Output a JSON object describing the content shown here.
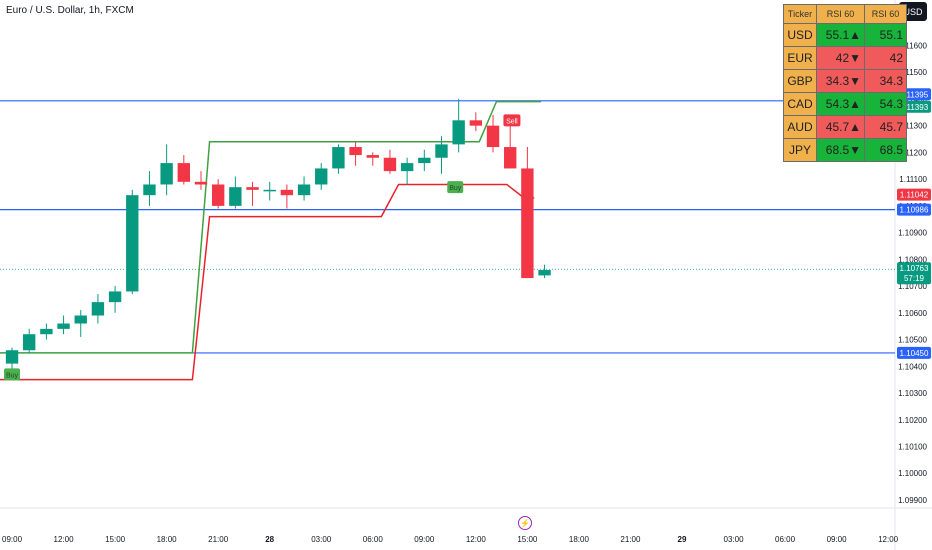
{
  "header": {
    "title": "Euro / U.S. Dollar, 1h, FXCM",
    "currency_button": "USD"
  },
  "rsi_table": {
    "headers": [
      "Ticker",
      "RSI 60",
      "RSI 60"
    ],
    "rows": [
      {
        "ticker": "USD",
        "rsi": "55.1▲",
        "value": "55.1",
        "color": "#18b33a"
      },
      {
        "ticker": "EUR",
        "rsi": "42▼",
        "value": "42",
        "color": "#f05a5a"
      },
      {
        "ticker": "GBP",
        "rsi": "34.3▼",
        "value": "34.3",
        "color": "#f05a5a"
      },
      {
        "ticker": "CAD",
        "rsi": "54.3▲",
        "value": "54.3",
        "color": "#18b33a"
      },
      {
        "ticker": "AUD",
        "rsi": "45.7▲",
        "value": "45.7",
        "color": "#f05a5a"
      },
      {
        "ticker": "JPY",
        "rsi": "68.5▼",
        "value": "68.5",
        "color": "#18b33a"
      }
    ]
  },
  "chart_data": {
    "type": "candlestick",
    "y_ticks": [
      "1.11600",
      "1.11500",
      "1.11400",
      "1.11300",
      "1.11200",
      "1.11100",
      "1.11000",
      "1.10900",
      "1.10800",
      "1.10700",
      "1.10600",
      "1.10500",
      "1.10400",
      "1.10300",
      "1.10200",
      "1.10100",
      "1.10000",
      "1.09900"
    ],
    "x_ticks": [
      {
        "label": "09:00",
        "t": 0
      },
      {
        "label": "12:00",
        "t": 3
      },
      {
        "label": "15:00",
        "t": 6
      },
      {
        "label": "18:00",
        "t": 9
      },
      {
        "label": "21:00",
        "t": 12
      },
      {
        "label": "28",
        "t": 15
      },
      {
        "label": "03:00",
        "t": 18
      },
      {
        "label": "06:00",
        "t": 21
      },
      {
        "label": "09:00",
        "t": 24
      },
      {
        "label": "12:00",
        "t": 27
      },
      {
        "label": "15:00",
        "t": 30
      },
      {
        "label": "18:00",
        "t": 33
      },
      {
        "label": "21:00",
        "t": 36
      },
      {
        "label": "29",
        "t": 39
      },
      {
        "label": "03:00",
        "t": 42
      },
      {
        "label": "06:00",
        "t": 45
      },
      {
        "label": "09:00",
        "t": 48
      },
      {
        "label": "12:00",
        "t": 51
      }
    ],
    "ylim": [
      1.0987,
      1.1177
    ],
    "xlim": [
      -0.7,
      51.4
    ],
    "candles": [
      {
        "o": 1.1041,
        "h": 1.1047,
        "l": 1.1038,
        "c": 1.1046
      },
      {
        "o": 1.1046,
        "h": 1.1054,
        "l": 1.1045,
        "c": 1.1052
      },
      {
        "o": 1.1052,
        "h": 1.1056,
        "l": 1.105,
        "c": 1.1054
      },
      {
        "o": 1.1054,
        "h": 1.1059,
        "l": 1.1052,
        "c": 1.1056
      },
      {
        "o": 1.1056,
        "h": 1.1061,
        "l": 1.1051,
        "c": 1.1059
      },
      {
        "o": 1.1059,
        "h": 1.1067,
        "l": 1.1056,
        "c": 1.1064
      },
      {
        "o": 1.1064,
        "h": 1.107,
        "l": 1.106,
        "c": 1.1068
      },
      {
        "o": 1.1068,
        "h": 1.1106,
        "l": 1.1067,
        "c": 1.1104
      },
      {
        "o": 1.1104,
        "h": 1.1113,
        "l": 1.11,
        "c": 1.1108
      },
      {
        "o": 1.1108,
        "h": 1.1123,
        "l": 1.1104,
        "c": 1.1116
      },
      {
        "o": 1.1116,
        "h": 1.1119,
        "l": 1.1108,
        "c": 1.1109
      },
      {
        "o": 1.1109,
        "h": 1.1113,
        "l": 1.1106,
        "c": 1.1108
      },
      {
        "o": 1.1108,
        "h": 1.111,
        "l": 1.1099,
        "c": 1.11
      },
      {
        "o": 1.11,
        "h": 1.1111,
        "l": 1.1099,
        "c": 1.1107
      },
      {
        "o": 1.1107,
        "h": 1.1109,
        "l": 1.11,
        "c": 1.1106
      },
      {
        "o": 1.1106,
        "h": 1.1109,
        "l": 1.1102,
        "c": 1.1106
      },
      {
        "o": 1.1106,
        "h": 1.1108,
        "l": 1.1099,
        "c": 1.1104
      },
      {
        "o": 1.1104,
        "h": 1.1111,
        "l": 1.1102,
        "c": 1.1108
      },
      {
        "o": 1.1108,
        "h": 1.1116,
        "l": 1.1106,
        "c": 1.1114
      },
      {
        "o": 1.1114,
        "h": 1.1123,
        "l": 1.1112,
        "c": 1.1122
      },
      {
        "o": 1.1122,
        "h": 1.1124,
        "l": 1.1115,
        "c": 1.1119
      },
      {
        "o": 1.1119,
        "h": 1.112,
        "l": 1.1115,
        "c": 1.1118
      },
      {
        "o": 1.1118,
        "h": 1.1121,
        "l": 1.1112,
        "c": 1.1113
      },
      {
        "o": 1.1113,
        "h": 1.1118,
        "l": 1.1108,
        "c": 1.1116
      },
      {
        "o": 1.1116,
        "h": 1.1121,
        "l": 1.1113,
        "c": 1.1118
      },
      {
        "o": 1.1118,
        "h": 1.1126,
        "l": 1.1112,
        "c": 1.1123
      },
      {
        "o": 1.1123,
        "h": 1.114,
        "l": 1.112,
        "c": 1.1132
      },
      {
        "o": 1.1132,
        "h": 1.1135,
        "l": 1.1128,
        "c": 1.113
      },
      {
        "o": 1.113,
        "h": 1.1134,
        "l": 1.112,
        "c": 1.1122
      },
      {
        "o": 1.1122,
        "h": 1.1132,
        "l": 1.1114,
        "c": 1.1114
      },
      {
        "o": 1.1114,
        "h": 1.1122,
        "l": 1.1073,
        "c": 1.1073
      },
      {
        "o": 1.1074,
        "h": 1.1078,
        "l": 1.1073,
        "c": 1.1076
      }
    ],
    "support_line": {
      "t": [
        -1,
        10.5,
        11.5,
        21.5,
        22.5,
        28.8,
        29.8,
        30.4
      ],
      "y": [
        1.1035,
        1.1035,
        1.1096,
        1.1096,
        1.1108,
        1.1108,
        1.1103,
        1.1103
      ]
    },
    "resistance_line": {
      "t": [
        -1,
        10.5,
        11.5,
        27.2,
        28.2,
        30.8
      ],
      "y": [
        1.1045,
        1.1045,
        1.1124,
        1.1124,
        1.1139,
        1.1139
      ]
    },
    "h_lines": [
      {
        "y": 1.11393,
        "label": "1.11393",
        "color": "#2962ff"
      },
      {
        "y": 1.10986,
        "label": "1.10986",
        "color": "#2962ff"
      },
      {
        "y": 1.1045,
        "label": "1.10450",
        "color": "#2962ff"
      }
    ],
    "price_labels": [
      {
        "y": 1.11395,
        "label": "1.11395",
        "color": "#2962ff",
        "offset": -6
      },
      {
        "y": 1.11393,
        "label": "1.11393",
        "color": "#089981",
        "offset": 6
      },
      {
        "y": 1.11042,
        "label": "1.11042",
        "color": "#f23645",
        "offset": 0
      },
      {
        "y": 1.10986,
        "label": "1.10986",
        "color": "#2962ff",
        "offset": 0
      },
      {
        "y": 1.1045,
        "label": "1.10450",
        "color": "#2962ff",
        "offset": 0
      }
    ],
    "current_price": {
      "y": 1.10763,
      "label": "1.10763",
      "countdown": "57:19",
      "color": "#089981"
    },
    "signals": [
      {
        "type": "Buy",
        "t": 0,
        "y": 1.1037,
        "color": "#4caf50"
      },
      {
        "type": "Buy",
        "t": 25.8,
        "y": 1.1107,
        "color": "#4caf50"
      },
      {
        "type": "Sell",
        "t": 29.1,
        "y": 1.1132,
        "color": "#f23645"
      }
    ],
    "colors": {
      "up": "#089981",
      "down": "#f23645",
      "support": "#e8222b",
      "resistance": "#3fa13f"
    }
  }
}
